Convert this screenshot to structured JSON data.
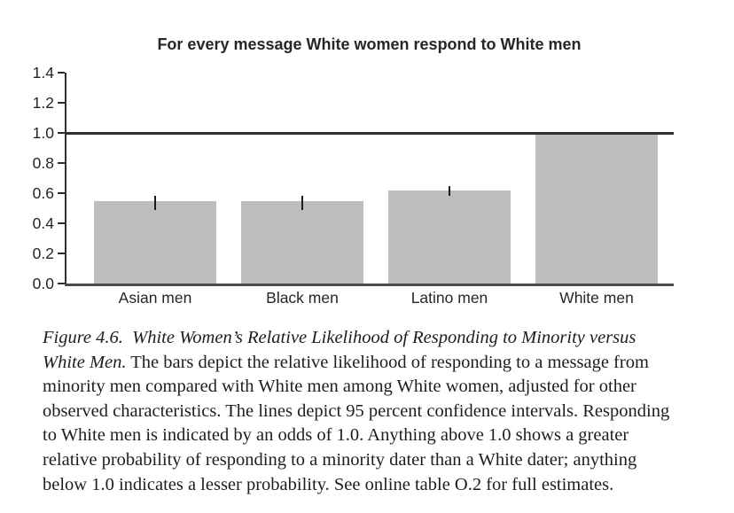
{
  "chart_data": {
    "type": "bar",
    "title": "For every message White women respond to White men",
    "categories": [
      "Asian men",
      "Black men",
      "Latino men",
      "White men"
    ],
    "values": [
      0.545,
      0.545,
      0.62,
      1.0
    ],
    "ci_low": [
      0.49,
      0.49,
      0.58,
      null
    ],
    "ci_high": [
      0.58,
      0.58,
      0.65,
      null
    ],
    "reference_line": 1.0,
    "ylim": [
      0.0,
      1.4
    ],
    "ytick_labels": [
      "0.0",
      "0.2",
      "0.4",
      "0.6",
      "0.8",
      "1.0",
      "1.2",
      "1.4"
    ],
    "xlabel": "",
    "ylabel": "",
    "grid": "off",
    "legend": "none",
    "bar_color": "#bdbebf",
    "axis_color": "#2e2e2e",
    "error_bar_color": "#1c1c1c"
  },
  "caption": {
    "lines": [
      {
        "italic": "Figure 4.6.  White Women’s Relative Likelihood of Responding to Minority versus",
        "roman": ""
      },
      {
        "italic": "White Men.",
        "roman": " The bars depict the relative likelihood of responding to a message from"
      },
      {
        "italic": "",
        "roman": "minority men compared with White men among White women, adjusted for other"
      },
      {
        "italic": "",
        "roman": "observed characteristics. The lines depict 95 percent confidence intervals. Responding"
      },
      {
        "italic": "",
        "roman": "to White men is indicated by an odds of 1.0. Anything above 1.0 shows a greater"
      },
      {
        "italic": "",
        "roman": "relative probability of responding to a minority dater than a White dater; anything"
      },
      {
        "italic": "",
        "roman": "below 1.0 indicates a lesser probability. See online table O.2 for full estimates."
      }
    ]
  }
}
